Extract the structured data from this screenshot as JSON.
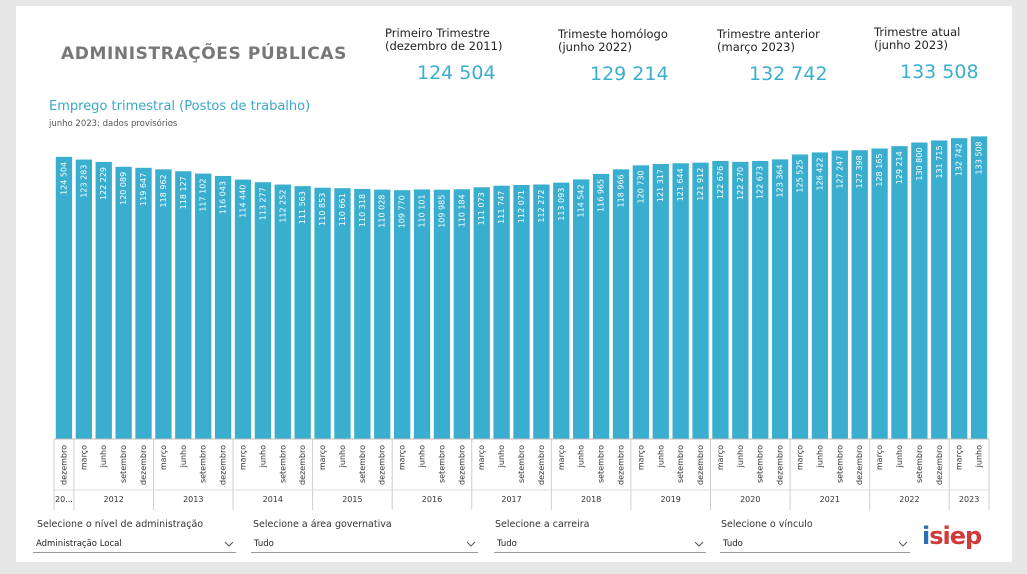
{
  "header": {
    "title": "ADMINISTRAÇÕES PÚBLICAS"
  },
  "kpis": [
    {
      "label": "Primeiro Trimestre\n(dezembro de 2011)",
      "value": "124 504"
    },
    {
      "label": "Trimeste homólogo\n(junho 2022)",
      "value": "129 214"
    },
    {
      "label": "Trimestre anterior\n(março 2023)",
      "value": "132 742"
    },
    {
      "label": "Trimestre atual\n(junho 2023)",
      "value": "133 508"
    }
  ],
  "chart": {
    "title": "Emprego trimestral (Postos de trabalho)",
    "subtitle": "junho 2023: dados provisórios"
  },
  "chart_data": {
    "type": "bar",
    "title": "Emprego trimestral (Postos de trabalho)",
    "subtitle": "junho 2023: dados provisórios",
    "bar_color": "#3aaecf",
    "categories": [
      "dezembro",
      "março",
      "junho",
      "setembro",
      "dezembro",
      "março",
      "junho",
      "setembro",
      "dezembro",
      "março",
      "junho",
      "setembro",
      "dezembro",
      "março",
      "junho",
      "setembro",
      "dezembro",
      "março",
      "junho",
      "setembro",
      "dezembro",
      "março",
      "junho",
      "setembro",
      "dezembro",
      "março",
      "junho",
      "setembro",
      "dezembro",
      "março",
      "junho",
      "setembro",
      "dezembro",
      "março",
      "junho",
      "setembro",
      "dezembro",
      "março",
      "junho",
      "setembro",
      "dezembro",
      "março",
      "junho",
      "setembro",
      "dezembro",
      "março",
      "junho"
    ],
    "values": [
      124504,
      123283,
      122229,
      120089,
      119647,
      118962,
      118127,
      117102,
      116043,
      114440,
      113277,
      112252,
      111563,
      110853,
      110661,
      110318,
      110028,
      109770,
      110101,
      109985,
      110184,
      111073,
      111747,
      112071,
      112272,
      113093,
      114542,
      116965,
      118966,
      120730,
      121317,
      121644,
      121912,
      122676,
      122270,
      122673,
      123364,
      125525,
      126422,
      127247,
      127398,
      128165,
      129214,
      130800,
      131715,
      132742,
      133508
    ],
    "value_labels": [
      "124 504",
      "123 283",
      "122 229",
      "120 089",
      "119 647",
      "118 962",
      "118 127",
      "117 102",
      "116 043",
      "114 440",
      "113 277",
      "112 252",
      "111 563",
      "110 853",
      "110 661",
      "110 318",
      "110 028",
      "109 770",
      "110 101",
      "109 985",
      "110 184",
      "111 073",
      "111 747",
      "112 071",
      "112 272",
      "113 093",
      "114 542",
      "116 965",
      "118 966",
      "120 730",
      "121 317",
      "121 644",
      "121 912",
      "122 676",
      "122 270",
      "122 673",
      "123 364",
      "125 525",
      "126 422",
      "127 247",
      "127 398",
      "128 165",
      "129 214",
      "130 800",
      "131 715",
      "132 742",
      "133 508"
    ],
    "year_groups": [
      {
        "label": "20...",
        "count": 1
      },
      {
        "label": "2012",
        "count": 4
      },
      {
        "label": "2013",
        "count": 4
      },
      {
        "label": "2014",
        "count": 4
      },
      {
        "label": "2015",
        "count": 4
      },
      {
        "label": "2016",
        "count": 4
      },
      {
        "label": "2017",
        "count": 4
      },
      {
        "label": "2018",
        "count": 4
      },
      {
        "label": "2019",
        "count": 4
      },
      {
        "label": "2020",
        "count": 4
      },
      {
        "label": "2021",
        "count": 4
      },
      {
        "label": "2022",
        "count": 4
      },
      {
        "label": "2023",
        "count": 2
      }
    ],
    "ylim": [
      0,
      135000
    ],
    "grid": false,
    "legend": "none"
  },
  "filters": [
    {
      "label": "Selecione o nível de administração",
      "value": "Administração Local"
    },
    {
      "label": "Selecione a área governativa",
      "value": "Tudo"
    },
    {
      "label": "Selecione a carreira",
      "value": "Tudo"
    },
    {
      "label": "Selecione o vínculo",
      "value": "Tudo"
    }
  ],
  "logo": {
    "text_i": "i",
    "text_rest": "siep"
  }
}
